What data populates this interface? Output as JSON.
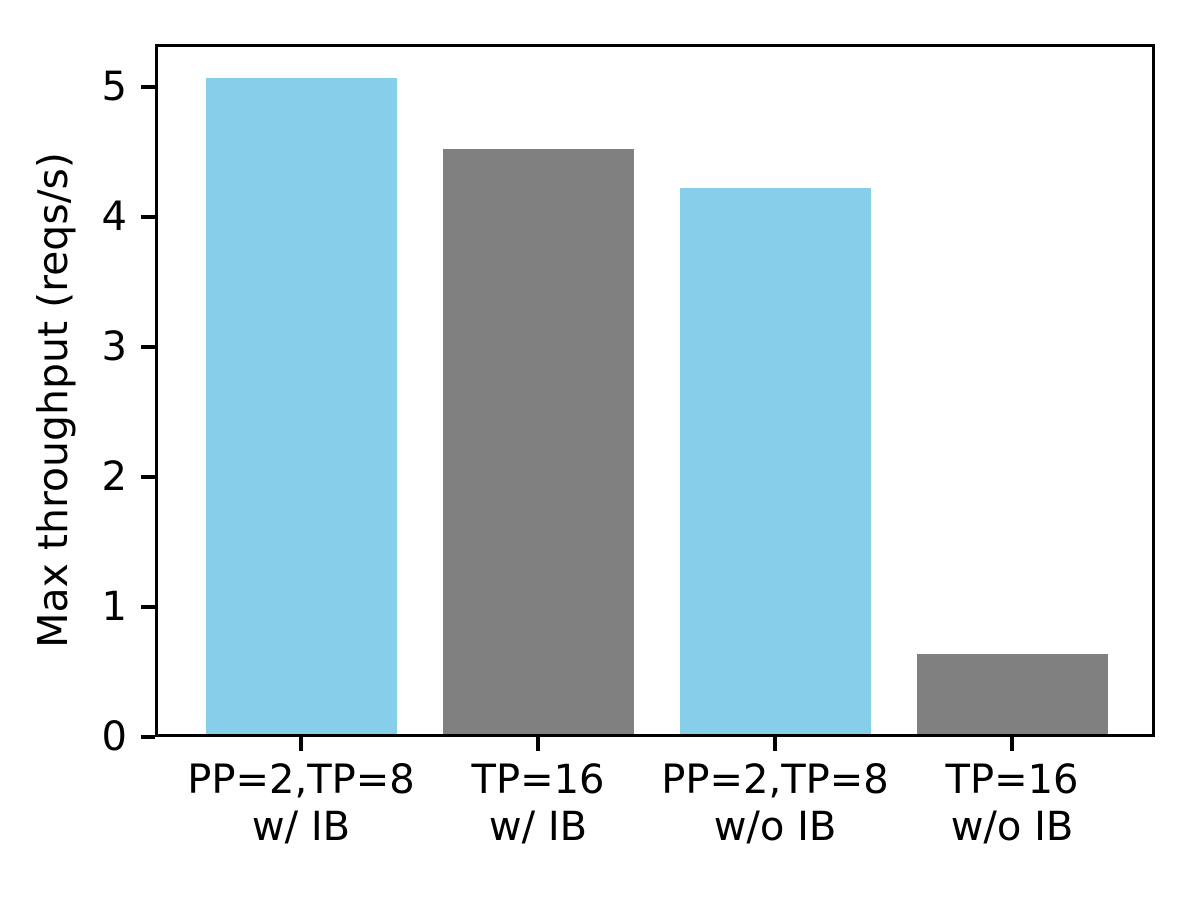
{
  "chart_data": {
    "type": "bar",
    "title": "",
    "xlabel": "",
    "ylabel": "Max throughput (reqs/s)",
    "categories": [
      "PP=2,TP=8\nw/ IB",
      "TP=16\nw/ IB",
      "PP=2,TP=8\nw/o IB",
      "TP=16\nw/o IB"
    ],
    "values": [
      5.07,
      4.52,
      4.22,
      0.64
    ],
    "bar_colors": [
      "#87CEEB",
      "#808080",
      "#87CEEB",
      "#808080"
    ],
    "ylim": [
      0,
      5.33
    ],
    "yticks": [
      0,
      1,
      2,
      3,
      4,
      5
    ],
    "grid": false,
    "legend": "none",
    "axis_color": "#000000",
    "background_color": "#ffffff",
    "bar_centers_pct": [
      14.6,
      38.3,
      62.0,
      85.7
    ],
    "bar_width_pct": 19.1
  }
}
